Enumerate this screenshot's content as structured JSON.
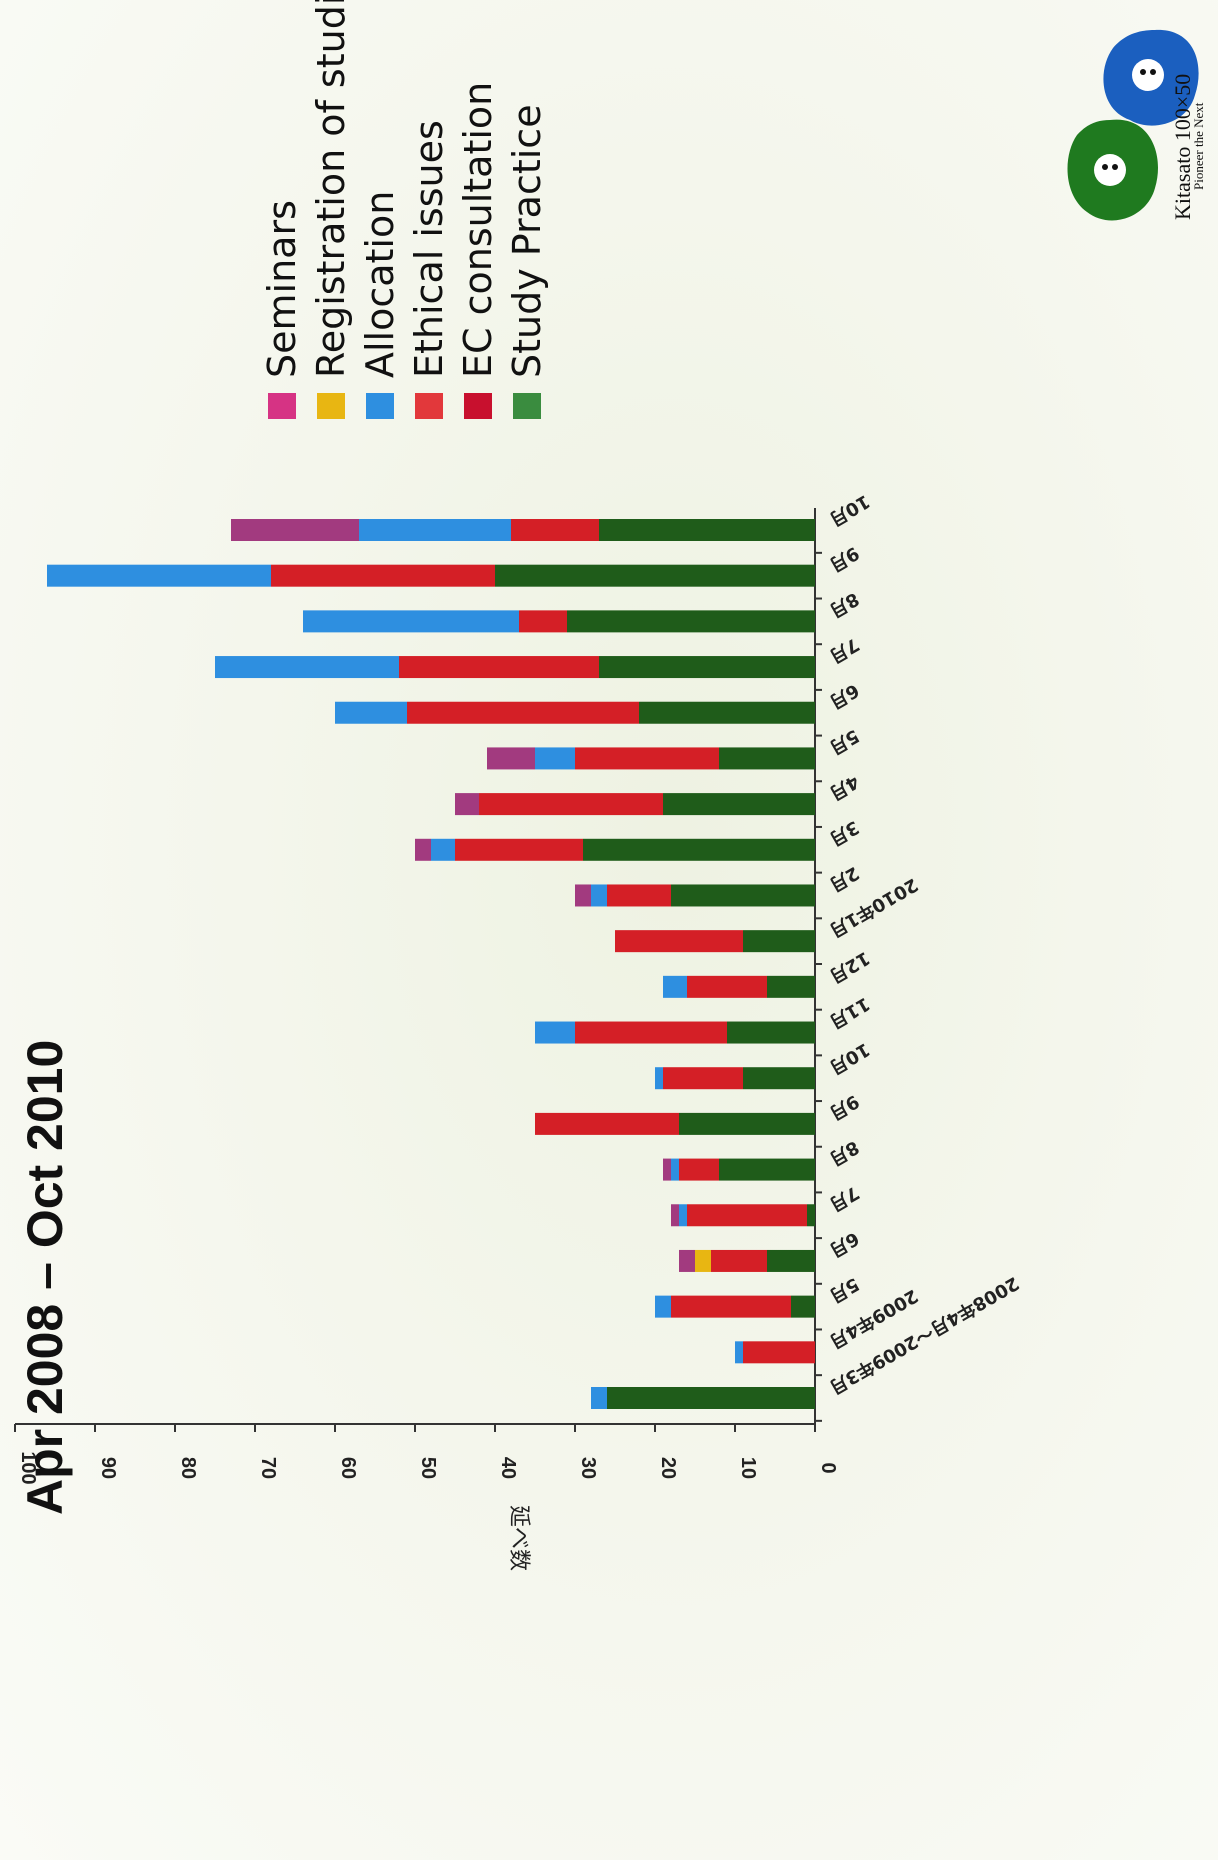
{
  "chart_data": {
    "type": "bar",
    "stacked": true,
    "title": "Apr 2008 – Oct 2010",
    "ylabel": "延べ数",
    "xlabel": "",
    "ylim": [
      0,
      100
    ],
    "yticks": [
      0,
      10,
      20,
      30,
      40,
      50,
      60,
      70,
      80,
      90,
      100
    ],
    "grid": false,
    "legend_position": "right",
    "categories": [
      "2008年4月～2009年3月",
      "2009年4月",
      "5月",
      "6月",
      "7月",
      "8月",
      "9月",
      "10月",
      "11月",
      "12月",
      "2010年1月",
      "2月",
      "3月",
      "4月",
      "5月",
      "6月",
      "7月",
      "8月",
      "9月",
      "10月"
    ],
    "series": [
      {
        "name": "Study Practice",
        "color": "#1f5c1a",
        "values": [
          26,
          0,
          3,
          6,
          1,
          12,
          17,
          9,
          11,
          6,
          9,
          18,
          29,
          19,
          12,
          22,
          27,
          31,
          40,
          27
        ]
      },
      {
        "name": "EC consultation",
        "color": "#d41f26",
        "values": [
          0,
          9,
          15,
          7,
          15,
          5,
          18,
          10,
          19,
          10,
          16,
          8,
          16,
          23,
          18,
          29,
          25,
          6,
          28,
          11
        ]
      },
      {
        "name": "Ethical issues",
        "color": "#e2383b",
        "values": [
          0,
          0,
          0,
          0,
          0,
          0,
          0,
          0,
          0,
          0,
          0,
          0,
          0,
          0,
          0,
          0,
          0,
          0,
          0,
          0
        ]
      },
      {
        "name": "Allocation",
        "color": "#2e8fe0",
        "values": [
          2,
          1,
          2,
          0,
          1,
          1,
          0,
          1,
          5,
          3,
          0,
          2,
          3,
          0,
          5,
          9,
          23,
          27,
          28,
          19
        ]
      },
      {
        "name": "Registration of studies",
        "color": "#e8b612",
        "values": [
          0,
          0,
          0,
          2,
          0,
          0,
          0,
          0,
          0,
          0,
          0,
          0,
          0,
          0,
          0,
          0,
          0,
          0,
          0,
          0
        ]
      },
      {
        "name": "Seminars",
        "color": "#a23a7f",
        "values": [
          0,
          0,
          0,
          2,
          1,
          1,
          0,
          0,
          0,
          0,
          0,
          2,
          2,
          3,
          6,
          0,
          0,
          0,
          0,
          16
        ]
      }
    ]
  },
  "legend": {
    "items": [
      {
        "label": "Seminars",
        "color": "#d63384"
      },
      {
        "label": "Registration of studies",
        "color": "#e8b612"
      },
      {
        "label": "Allocation",
        "color": "#2e8fe0"
      },
      {
        "label": "Ethical issues",
        "color": "#e2383b"
      },
      {
        "label": "EC consultation",
        "color": "#c8102e"
      },
      {
        "label": "Study Practice",
        "color": "#3a8c3f"
      }
    ]
  },
  "logo": {
    "name": "Kitasato 100×50",
    "tagline": "Pioneer the Next",
    "colors": {
      "green": "#1f7a1f",
      "blue": "#1b5fbf"
    }
  }
}
